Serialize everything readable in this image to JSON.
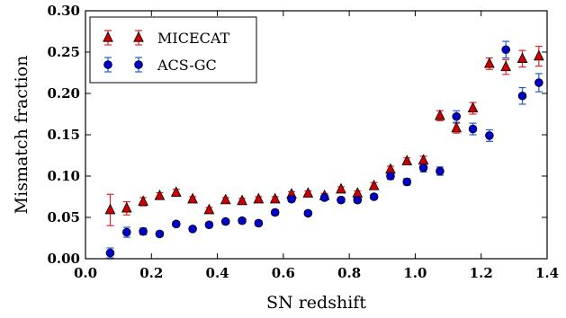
{
  "chart_data": {
    "type": "scatter",
    "title": "",
    "xlabel": "SN redshift",
    "ylabel": "Mismatch fraction",
    "xlim": [
      0.0,
      1.4
    ],
    "ylim": [
      0.0,
      0.3
    ],
    "x_ticks": [
      "0.0",
      "0.2",
      "0.4",
      "0.6",
      "0.8",
      "1.0",
      "1.2",
      "1.4"
    ],
    "y_ticks": [
      "0.00",
      "0.05",
      "0.10",
      "0.15",
      "0.20",
      "0.25",
      "0.30"
    ],
    "grid": false,
    "legend_position": "top-left",
    "series": [
      {
        "name": "MICECAT",
        "marker": "triangle",
        "color": "#cc0000",
        "error_color": "#e0262b",
        "x": [
          0.075,
          0.125,
          0.175,
          0.225,
          0.275,
          0.325,
          0.375,
          0.425,
          0.475,
          0.525,
          0.575,
          0.625,
          0.675,
          0.725,
          0.775,
          0.825,
          0.875,
          0.925,
          0.975,
          1.025,
          1.075,
          1.125,
          1.175,
          1.225,
          1.275,
          1.325,
          1.375
        ],
        "y": [
          0.059,
          0.061,
          0.069,
          0.076,
          0.08,
          0.072,
          0.059,
          0.071,
          0.07,
          0.072,
          0.072,
          0.078,
          0.079,
          0.076,
          0.084,
          0.079,
          0.088,
          0.108,
          0.118,
          0.119,
          0.173,
          0.158,
          0.182,
          0.236,
          0.232,
          0.242,
          0.245
        ],
        "err": [
          0.019,
          0.008,
          0.005,
          0.004,
          0.004,
          0.003,
          0.003,
          0.003,
          0.003,
          0.003,
          0.003,
          0.003,
          0.003,
          0.003,
          0.003,
          0.003,
          0.004,
          0.004,
          0.004,
          0.005,
          0.006,
          0.006,
          0.007,
          0.007,
          0.009,
          0.01,
          0.012
        ]
      },
      {
        "name": "ACS-GC",
        "marker": "circle",
        "color": "#0000cc",
        "error_color": "#1f5bd6",
        "x": [
          0.075,
          0.125,
          0.175,
          0.225,
          0.275,
          0.325,
          0.375,
          0.425,
          0.475,
          0.525,
          0.575,
          0.625,
          0.675,
          0.725,
          0.775,
          0.825,
          0.875,
          0.925,
          0.975,
          1.025,
          1.075,
          1.125,
          1.175,
          1.225,
          1.275,
          1.325,
          1.375
        ],
        "y": [
          0.007,
          0.032,
          0.033,
          0.03,
          0.042,
          0.036,
          0.041,
          0.045,
          0.046,
          0.043,
          0.056,
          0.072,
          0.055,
          0.074,
          0.071,
          0.071,
          0.075,
          0.1,
          0.093,
          0.11,
          0.106,
          0.172,
          0.157,
          0.149,
          0.253,
          0.197,
          0.213
        ],
        "err": [
          0.006,
          0.006,
          0.004,
          0.003,
          0.003,
          0.003,
          0.003,
          0.003,
          0.003,
          0.003,
          0.003,
          0.003,
          0.003,
          0.003,
          0.003,
          0.003,
          0.003,
          0.004,
          0.004,
          0.005,
          0.005,
          0.007,
          0.007,
          0.007,
          0.01,
          0.01,
          0.011
        ]
      }
    ]
  }
}
